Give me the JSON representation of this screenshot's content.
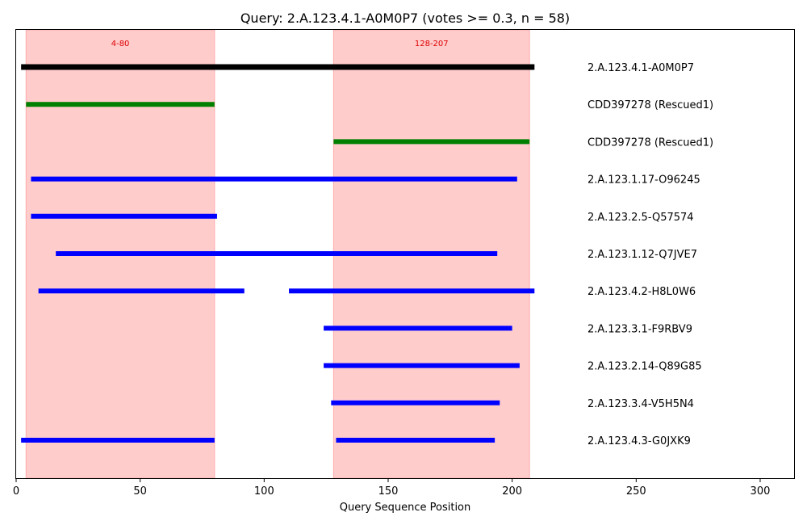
{
  "chart_data": {
    "type": "bar",
    "title": "Query: 2.A.123.4.1-A0M0P7 (votes >= 0.3, n = 58)",
    "xlabel": "Query Sequence Position",
    "ylabel": "",
    "xlim": [
      0,
      314
    ],
    "xticks": [
      0,
      50,
      100,
      150,
      200,
      250,
      300
    ],
    "grid": false,
    "regions": [
      {
        "label": "4-80",
        "start": 4,
        "end": 80,
        "color": "#ffcccc"
      },
      {
        "label": "128-207",
        "start": 128,
        "end": 207,
        "color": "#ffcccc"
      }
    ],
    "rows": [
      {
        "label": "2.A.123.4.1-A0M0P7",
        "color": "#000000",
        "segments": [
          [
            2,
            209
          ]
        ]
      },
      {
        "label": "CDD397278 (Rescued1)",
        "color": "#008000",
        "segments": [
          [
            4,
            80
          ]
        ]
      },
      {
        "label": "CDD397278 (Rescued1)",
        "color": "#008000",
        "segments": [
          [
            128,
            207
          ]
        ]
      },
      {
        "label": "2.A.123.1.17-O96245",
        "color": "#0000ff",
        "segments": [
          [
            6,
            202
          ]
        ]
      },
      {
        "label": "2.A.123.2.5-Q57574",
        "color": "#0000ff",
        "segments": [
          [
            6,
            81
          ]
        ]
      },
      {
        "label": "2.A.123.1.12-Q7JVE7",
        "color": "#0000ff",
        "segments": [
          [
            16,
            194
          ]
        ]
      },
      {
        "label": "2.A.123.4.2-H8L0W6",
        "color": "#0000ff",
        "segments": [
          [
            9,
            92
          ],
          [
            110,
            209
          ]
        ]
      },
      {
        "label": "2.A.123.3.1-F9RBV9",
        "color": "#0000ff",
        "segments": [
          [
            124,
            200
          ]
        ]
      },
      {
        "label": "2.A.123.2.14-Q89G85",
        "color": "#0000ff",
        "segments": [
          [
            124,
            203
          ]
        ]
      },
      {
        "label": "2.A.123.3.4-V5H5N4",
        "color": "#0000ff",
        "segments": [
          [
            127,
            195
          ]
        ]
      },
      {
        "label": "2.A.123.4.3-G0JXK9",
        "color": "#0000ff",
        "segments": [
          [
            2,
            80
          ],
          [
            129,
            193
          ]
        ]
      }
    ]
  }
}
